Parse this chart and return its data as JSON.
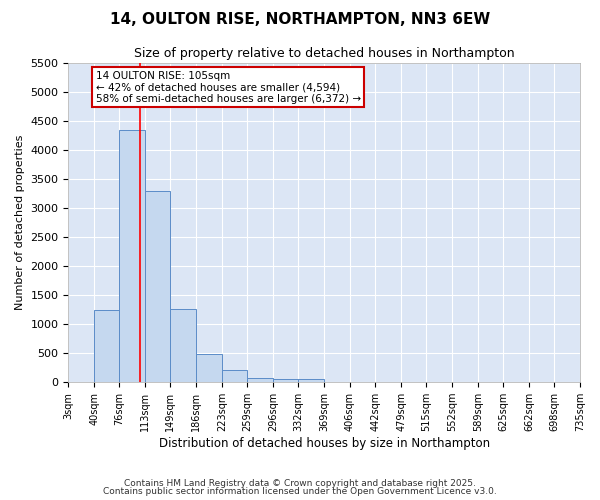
{
  "title": "14, OULTON RISE, NORTHAMPTON, NN3 6EW",
  "subtitle": "Size of property relative to detached houses in Northampton",
  "xlabel": "Distribution of detached houses by size in Northampton",
  "ylabel": "Number of detached properties",
  "bin_labels": [
    "3sqm",
    "40sqm",
    "76sqm",
    "113sqm",
    "149sqm",
    "186sqm",
    "223sqm",
    "259sqm",
    "296sqm",
    "332sqm",
    "369sqm",
    "406sqm",
    "442sqm",
    "479sqm",
    "515sqm",
    "552sqm",
    "589sqm",
    "625sqm",
    "662sqm",
    "698sqm",
    "735sqm"
  ],
  "bin_edges": [
    3,
    40,
    76,
    113,
    149,
    186,
    223,
    259,
    296,
    332,
    369,
    406,
    442,
    479,
    515,
    552,
    589,
    625,
    662,
    698,
    735
  ],
  "bar_values": [
    0,
    1250,
    4350,
    3300,
    1270,
    490,
    210,
    75,
    50,
    50,
    0,
    0,
    0,
    0,
    0,
    0,
    0,
    0,
    0,
    0
  ],
  "bar_color": "#c5d8ef",
  "bar_edge_color": "#5b8cc8",
  "red_line_x": 105,
  "ylim": [
    0,
    5500
  ],
  "yticks": [
    0,
    500,
    1000,
    1500,
    2000,
    2500,
    3000,
    3500,
    4000,
    4500,
    5000,
    5500
  ],
  "annotation_title": "14 OULTON RISE: 105sqm",
  "annotation_line1": "← 42% of detached houses are smaller (4,594)",
  "annotation_line2": "58% of semi-detached houses are larger (6,372) →",
  "annotation_box_color": "#ffffff",
  "annotation_box_edge": "#cc0000",
  "background_color": "#dce6f5",
  "grid_color": "#ffffff",
  "footer1": "Contains HM Land Registry data © Crown copyright and database right 2025.",
  "footer2": "Contains public sector information licensed under the Open Government Licence v3.0."
}
